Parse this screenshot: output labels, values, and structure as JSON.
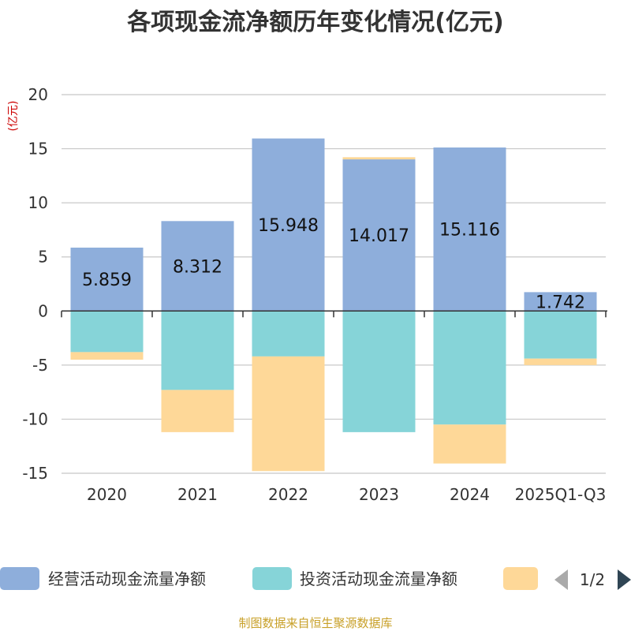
{
  "chart_data": {
    "type": "bar",
    "stacked": true,
    "title": "各项现金流净额历年变化情况(亿元)",
    "ylabel": "(亿元)",
    "xlabel": "",
    "ylim": [
      -15,
      20
    ],
    "yticks": [
      20,
      15,
      10,
      5,
      0,
      -5,
      -10,
      -15
    ],
    "ytick_labels": [
      "20",
      "15",
      "10",
      "5",
      "0",
      "-5",
      "-10",
      "-15"
    ],
    "categories": [
      "2020",
      "2021",
      "2022",
      "2023",
      "2024",
      "2025Q1-Q3"
    ],
    "series": [
      {
        "name": "经营活动现金流量净额",
        "color": "#8eaedb",
        "values": [
          5.859,
          8.312,
          15.948,
          14.017,
          15.116,
          1.742
        ],
        "labels": [
          "5.859",
          "8.312",
          "15.948",
          "14.017",
          "15.116",
          "1.742"
        ]
      },
      {
        "name": "投资活动现金流量净额",
        "color": "#86d4d8",
        "values": [
          -3.8,
          -7.3,
          -4.2,
          -11.2,
          -10.5,
          -4.4
        ]
      },
      {
        "name": "",
        "color": "#fed898",
        "values": [
          -0.7,
          -3.9,
          -10.6,
          0.2,
          -3.6,
          -0.6
        ]
      }
    ],
    "legend": {
      "position": "bottom",
      "page": "1/2"
    },
    "grid": true
  },
  "colors": {
    "title": "#333333",
    "axis_text": "#333333",
    "unit_label": "#cc0000",
    "gridline": "#c8c8c8",
    "axis_line": "#333333",
    "pager_inactive": "#aaaaaa",
    "pager_active": "#2f4554",
    "source": "#c8a028"
  },
  "source": "制图数据来自恒生聚源数据库"
}
